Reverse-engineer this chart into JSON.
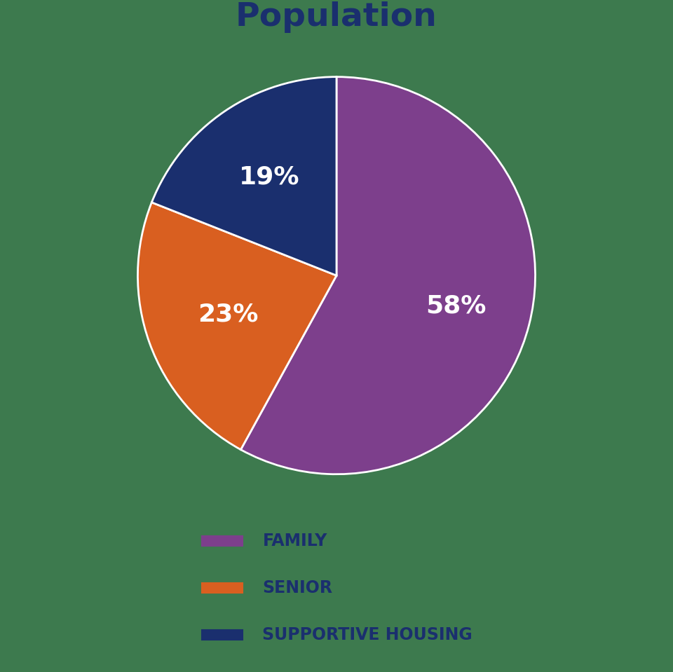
{
  "title": "Population",
  "title_color": "#1a2f6e",
  "title_fontsize": 34,
  "title_fontweight": "bold",
  "slices": [
    58,
    23,
    19
  ],
  "colors": [
    "#7d3f8c",
    "#d95f20",
    "#1a2f6e"
  ],
  "pct_labels": [
    "58%",
    "23%",
    "19%"
  ],
  "pct_label_color": "white",
  "pct_fontsize": 26,
  "pct_fontweight": "bold",
  "legend_labels": [
    "FAMILY",
    "SENIOR",
    "SUPPORTIVE HOUSING"
  ],
  "legend_fontsize": 17,
  "legend_color": "#1a2f6e",
  "background_color": "#3d7a4e",
  "wedge_linewidth": 2,
  "wedge_edgecolor": "white",
  "startangle": 90,
  "label_radii": [
    0.62,
    0.58,
    0.6
  ]
}
